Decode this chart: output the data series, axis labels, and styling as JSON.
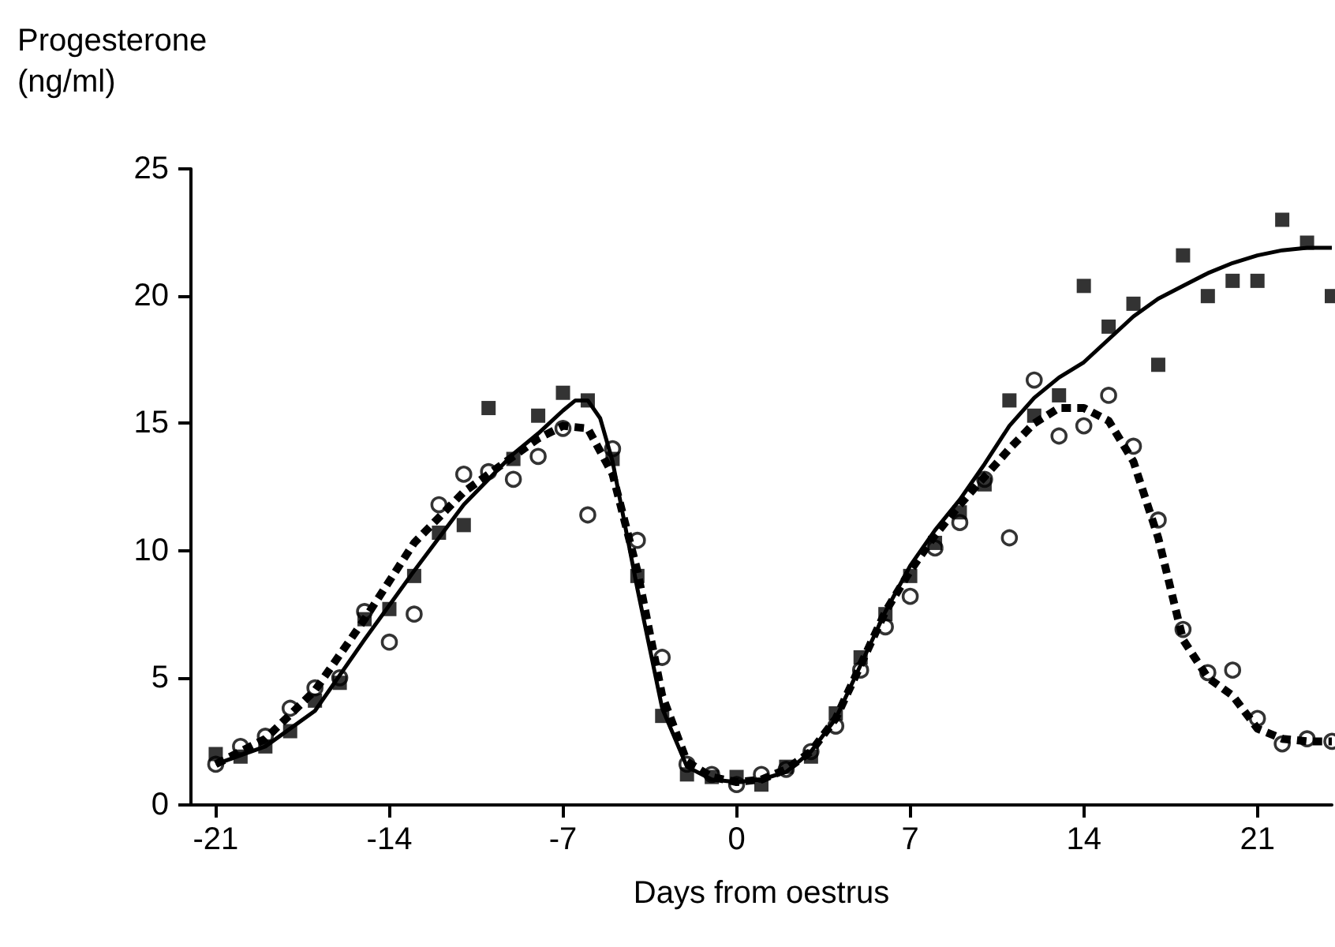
{
  "chart_data": {
    "type": "scatter",
    "xlabel": "Days from oestrus",
    "ylabel": "Progesterone\n(ng/ml)",
    "xlim": [
      -22,
      24
    ],
    "xticks": [
      -21,
      -14,
      -7,
      0,
      7,
      14,
      21
    ],
    "ylim": [
      0,
      25
    ],
    "yticks": [
      0,
      5,
      10,
      15,
      20,
      25
    ],
    "grid": false,
    "series": [
      {
        "marker": "square",
        "color": "#000000",
        "x": [
          -21,
          -20,
          -19,
          -18,
          -17,
          -16,
          -15,
          -14,
          -13,
          -12,
          -11,
          -10,
          -9,
          -8,
          -7,
          -6,
          -5,
          -4,
          -3,
          -2,
          -1,
          0,
          1,
          2,
          3,
          4,
          5,
          6,
          7,
          8,
          9,
          10,
          11,
          12,
          13,
          14,
          15,
          16,
          17,
          18,
          19,
          20,
          21,
          22,
          23,
          24
        ],
        "values": [
          2.0,
          1.9,
          2.3,
          2.9,
          4.1,
          4.8,
          7.3,
          7.7,
          9.0,
          10.7,
          11.0,
          15.6,
          13.6,
          15.3,
          16.2,
          15.9,
          13.6,
          9.0,
          3.5,
          1.2,
          1.1,
          1.1,
          0.8,
          1.5,
          1.9,
          3.6,
          5.8,
          7.5,
          9.0,
          10.3,
          11.5,
          12.6,
          15.9,
          15.3,
          16.1,
          20.4,
          18.8,
          19.7,
          17.3,
          21.6,
          20.0,
          20.6,
          20.6,
          23.0,
          22.1,
          20.0
        ]
      },
      {
        "marker": "circle",
        "color": "#000000",
        "x": [
          -21,
          -20,
          -19,
          -18,
          -17,
          -16,
          -15,
          -14,
          -13,
          -12,
          -11,
          -10,
          -9,
          -8,
          -7,
          -6,
          -5,
          -4,
          -3,
          -2,
          -1,
          0,
          1,
          2,
          3,
          4,
          5,
          6,
          7,
          8,
          9,
          10,
          11,
          12,
          13,
          14,
          15,
          16,
          17,
          18,
          19,
          20,
          21,
          22,
          23,
          24
        ],
        "values": [
          1.6,
          2.3,
          2.7,
          3.8,
          4.6,
          5.0,
          7.6,
          6.4,
          7.5,
          11.8,
          13.0,
          13.1,
          12.8,
          13.7,
          14.8,
          11.4,
          14.0,
          10.4,
          5.8,
          1.6,
          1.2,
          0.8,
          1.2,
          1.4,
          2.1,
          3.1,
          5.3,
          7.0,
          8.2,
          10.1,
          11.1,
          12.8,
          10.5,
          16.7,
          14.5,
          14.9,
          16.1,
          14.1,
          11.2,
          6.9,
          5.2,
          5.3,
          3.4,
          2.4,
          2.6,
          2.5
        ]
      },
      {
        "type": "line",
        "line_style": "solid",
        "color": "#000000",
        "x": [
          -21,
          -19,
          -17,
          -15,
          -13,
          -11,
          -9,
          -8,
          -7,
          -6.5,
          -6,
          -5.5,
          -5,
          -4,
          -3,
          -2,
          -1,
          0,
          1,
          2,
          3,
          4,
          5,
          6,
          7,
          8,
          9,
          10,
          11,
          12,
          13,
          14,
          15,
          16,
          17,
          18,
          19,
          20,
          21,
          22,
          23,
          24
        ],
        "values": [
          1.6,
          2.3,
          3.7,
          6.5,
          9.2,
          11.8,
          13.8,
          14.6,
          15.5,
          15.9,
          15.9,
          15.2,
          13.5,
          8.5,
          3.8,
          1.5,
          1.0,
          0.9,
          1.0,
          1.3,
          2.1,
          3.4,
          5.5,
          7.6,
          9.4,
          10.8,
          12.0,
          13.4,
          14.9,
          16.0,
          16.8,
          17.4,
          18.3,
          19.2,
          19.9,
          20.4,
          20.9,
          21.3,
          21.6,
          21.8,
          21.9,
          21.9
        ]
      },
      {
        "type": "line",
        "line_style": "dashed",
        "color": "#000000",
        "x": [
          -21,
          -19,
          -17,
          -15,
          -13,
          -11,
          -9,
          -8,
          -7,
          -6,
          -5,
          -4,
          -3,
          -2,
          -1,
          0,
          1,
          2,
          3,
          4,
          5,
          6,
          7,
          8,
          9,
          10,
          11,
          12,
          13,
          14,
          15,
          16,
          17,
          18,
          19,
          20,
          21,
          22,
          23,
          24
        ],
        "values": [
          1.6,
          2.6,
          4.5,
          7.3,
          10.3,
          12.3,
          13.7,
          14.4,
          14.9,
          14.8,
          13.0,
          9.2,
          4.3,
          1.7,
          1.1,
          0.9,
          1.0,
          1.4,
          2.1,
          3.4,
          5.5,
          7.6,
          9.2,
          10.6,
          11.8,
          12.9,
          14.0,
          15.0,
          15.6,
          15.6,
          15.1,
          13.5,
          10.5,
          6.5,
          5.0,
          4.3,
          3.0,
          2.6,
          2.5,
          2.5
        ]
      }
    ]
  }
}
